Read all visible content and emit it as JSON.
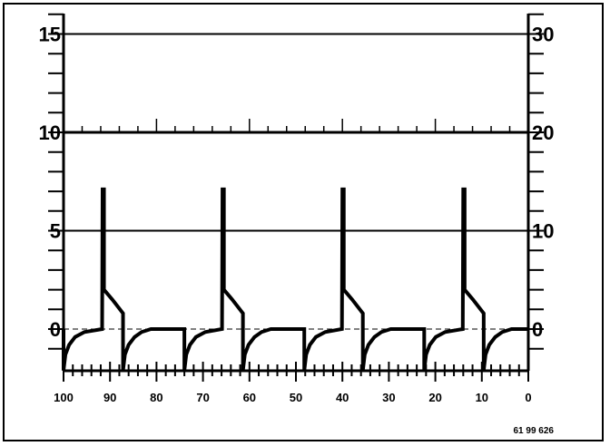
{
  "chart_data": {
    "type": "line",
    "title": "",
    "xlabel": "",
    "ylabel": "",
    "xlim": [
      100,
      0
    ],
    "ylim_left": [
      -2.1,
      16
    ],
    "ylim_right": [
      -4.2,
      32
    ],
    "x_ticks": [
      "100",
      "90",
      "80",
      "70",
      "60",
      "50",
      "40",
      "30",
      "20",
      "10",
      "0"
    ],
    "x_tick_values": [
      100,
      90,
      80,
      70,
      60,
      50,
      40,
      30,
      20,
      10,
      0
    ],
    "y_left_ticks": [
      "0",
      "5",
      "10",
      "15"
    ],
    "y_left_tick_values": [
      0,
      5,
      10,
      15
    ],
    "y_right_ticks": [
      "0",
      "10",
      "20",
      "30"
    ],
    "y_right_tick_values": [
      0,
      10,
      20,
      30
    ],
    "grid": "horizontal lines at 5, 10, 15 (left axis); dashed line at 0",
    "line_color": "#000000",
    "series": [
      {
        "points": [
          [
            100,
            0
          ],
          [
            100,
            -2.1
          ],
          [
            99.6,
            -1.3
          ],
          [
            98.8,
            -0.8
          ],
          [
            97.5,
            -0.4
          ],
          [
            95.5,
            -0.15
          ],
          [
            91.7,
            0
          ],
          [
            91.6,
            7.1
          ],
          [
            91.3,
            7.1
          ],
          [
            91.3,
            2.0
          ],
          [
            89.5,
            1.5
          ],
          [
            87.2,
            0.8
          ],
          [
            87.2,
            -2.1
          ],
          [
            86.8,
            -1.3
          ],
          [
            86.0,
            -0.8
          ],
          [
            84.7,
            -0.4
          ],
          [
            83.2,
            -0.15
          ],
          [
            81.2,
            0
          ],
          [
            74,
            0
          ],
          [
            74,
            -2.1
          ],
          [
            73.6,
            -1.3
          ],
          [
            72.8,
            -0.8
          ],
          [
            71.5,
            -0.4
          ],
          [
            69.5,
            -0.15
          ],
          [
            65.9,
            0
          ],
          [
            65.8,
            7.1
          ],
          [
            65.5,
            7.1
          ],
          [
            65.5,
            2.0
          ],
          [
            63.7,
            1.5
          ],
          [
            61.4,
            0.8
          ],
          [
            61.4,
            -2.1
          ],
          [
            61.0,
            -1.3
          ],
          [
            60.2,
            -0.8
          ],
          [
            58.9,
            -0.4
          ],
          [
            57.4,
            -0.15
          ],
          [
            55.4,
            0
          ],
          [
            48.2,
            0
          ],
          [
            48.2,
            -2.1
          ],
          [
            47.8,
            -1.3
          ],
          [
            47.0,
            -0.8
          ],
          [
            45.7,
            -0.4
          ],
          [
            43.7,
            -0.15
          ],
          [
            40.1,
            0
          ],
          [
            40,
            7.1
          ],
          [
            39.7,
            7.1
          ],
          [
            39.7,
            2.0
          ],
          [
            37.9,
            1.5
          ],
          [
            35.6,
            0.8
          ],
          [
            35.6,
            -2.1
          ],
          [
            35.2,
            -1.3
          ],
          [
            34.4,
            -0.8
          ],
          [
            33.1,
            -0.4
          ],
          [
            31.6,
            -0.15
          ],
          [
            29.6,
            0
          ],
          [
            22.4,
            0
          ],
          [
            22.4,
            -2.1
          ],
          [
            22.0,
            -1.3
          ],
          [
            21.2,
            -0.8
          ],
          [
            19.9,
            -0.4
          ],
          [
            17.9,
            -0.15
          ],
          [
            14.1,
            0
          ],
          [
            14,
            7.1
          ],
          [
            13.7,
            7.1
          ],
          [
            13.7,
            2.0
          ],
          [
            11.9,
            1.5
          ],
          [
            9.6,
            0.8
          ],
          [
            9.6,
            -2.1
          ],
          [
            9.2,
            -1.3
          ],
          [
            8.4,
            -0.8
          ],
          [
            7.1,
            -0.4
          ],
          [
            5.6,
            -0.15
          ],
          [
            3.6,
            0
          ],
          [
            0,
            0
          ]
        ]
      }
    ],
    "annotation": "61 99 626"
  }
}
